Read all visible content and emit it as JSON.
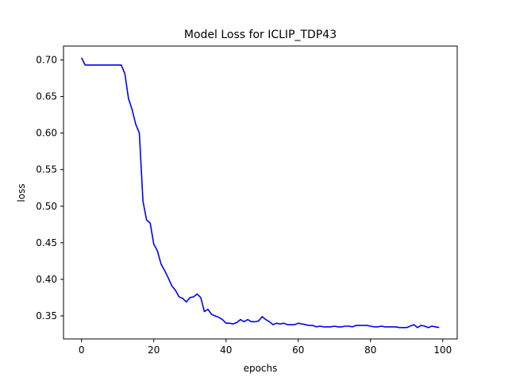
{
  "chart_data": {
    "type": "line",
    "title": "Model Loss for ICLIP_TDP43",
    "xlabel": "epochs",
    "ylabel": "loss",
    "xlim": [
      -5,
      104
    ],
    "ylim": [
      0.3185,
      0.719
    ],
    "xticks": [
      0,
      20,
      40,
      60,
      80,
      100
    ],
    "yticks": [
      0.35,
      0.4,
      0.45,
      0.5,
      0.55,
      0.6,
      0.65,
      0.7
    ],
    "ytick_labels": [
      "0.35",
      "0.40",
      "0.45",
      "0.50",
      "0.55",
      "0.60",
      "0.65",
      "0.70"
    ],
    "grid": false,
    "series": [
      {
        "color": "#0000ff",
        "x": [
          0,
          1,
          2,
          3,
          4,
          5,
          6,
          7,
          8,
          9,
          10,
          11,
          12,
          13,
          14,
          15,
          16,
          17,
          18,
          19,
          20,
          21,
          22,
          23,
          24,
          25,
          26,
          27,
          28,
          29,
          30,
          31,
          32,
          33,
          34,
          35,
          36,
          37,
          38,
          39,
          40,
          41,
          42,
          43,
          44,
          45,
          46,
          47,
          48,
          49,
          50,
          51,
          52,
          53,
          54,
          55,
          56,
          57,
          58,
          59,
          60,
          61,
          62,
          63,
          64,
          65,
          66,
          67,
          68,
          69,
          70,
          71,
          72,
          73,
          74,
          75,
          76,
          77,
          78,
          79,
          80,
          81,
          82,
          83,
          84,
          85,
          86,
          87,
          88,
          89,
          90,
          91,
          92,
          93,
          94,
          95,
          96,
          97,
          98,
          99
        ],
        "y": [
          0.703,
          0.693,
          0.693,
          0.693,
          0.693,
          0.693,
          0.693,
          0.693,
          0.693,
          0.693,
          0.693,
          0.693,
          0.681,
          0.647,
          0.632,
          0.612,
          0.6,
          0.507,
          0.481,
          0.477,
          0.448,
          0.439,
          0.421,
          0.412,
          0.402,
          0.391,
          0.385,
          0.376,
          0.374,
          0.369,
          0.375,
          0.376,
          0.38,
          0.375,
          0.356,
          0.359,
          0.352,
          0.35,
          0.348,
          0.345,
          0.34,
          0.34,
          0.339,
          0.341,
          0.345,
          0.342,
          0.345,
          0.342,
          0.342,
          0.343,
          0.349,
          0.345,
          0.342,
          0.338,
          0.34,
          0.339,
          0.34,
          0.338,
          0.338,
          0.338,
          0.34,
          0.339,
          0.338,
          0.337,
          0.337,
          0.335,
          0.336,
          0.335,
          0.335,
          0.335,
          0.336,
          0.335,
          0.335,
          0.336,
          0.336,
          0.335,
          0.337,
          0.337,
          0.337,
          0.337,
          0.336,
          0.335,
          0.335,
          0.336,
          0.335,
          0.335,
          0.335,
          0.335,
          0.334,
          0.334,
          0.334,
          0.336,
          0.338,
          0.334,
          0.337,
          0.336,
          0.334,
          0.336,
          0.335,
          0.334
        ]
      }
    ]
  }
}
